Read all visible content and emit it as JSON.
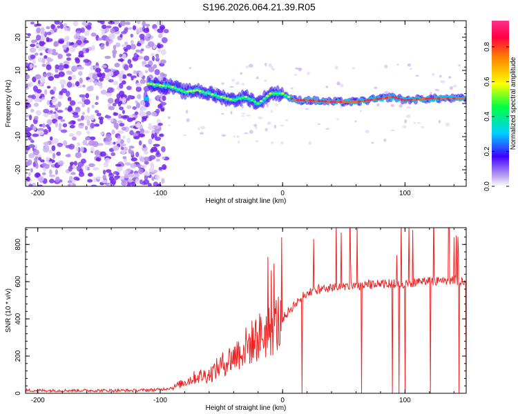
{
  "chart_data": [
    {
      "type": "heatmap",
      "title": "S196.2026.064.21.39.R05",
      "xlabel": "Height of straight line (km)",
      "ylabel": "Frequency (Hz)",
      "xlim": [
        -210,
        150
      ],
      "ylim": [
        -25,
        25
      ],
      "xticks": [
        -200,
        -100,
        0,
        100
      ],
      "yticks": [
        -20,
        -10,
        0,
        10,
        20
      ],
      "colorbar": {
        "label": "Normalized spectral amplitude",
        "range": [
          0,
          1
        ],
        "ticks": [
          0.0,
          0.2,
          0.4,
          0.6,
          0.8
        ],
        "tick_labels": [
          "0.0",
          "0.2",
          "0.4",
          "0.6",
          "0.8"
        ]
      },
      "ridge": {
        "description_points_x": [
          -110,
          -100,
          -90,
          -80,
          -70,
          -60,
          -50,
          -40,
          -30,
          -20,
          -10,
          0,
          10,
          20,
          40,
          60,
          80,
          90,
          100,
          120,
          150
        ],
        "frequency_hz": [
          6,
          5.5,
          5,
          3.5,
          4,
          3,
          2,
          1,
          2,
          0,
          3,
          3,
          1,
          1,
          0.5,
          0.5,
          1.5,
          2,
          1,
          1.5,
          1.5
        ]
      }
    },
    {
      "type": "line",
      "xlabel": "Height of straight line (km)",
      "ylabel": "SNR (10 * v/v)",
      "xlim": [
        -210,
        150
      ],
      "ylim": [
        0,
        890
      ],
      "xticks": [
        -200,
        -100,
        0,
        100
      ],
      "yticks": [
        0,
        200,
        400,
        600,
        800
      ],
      "series": [
        {
          "name": "SNR",
          "color": "#ee2222",
          "x": [
            -210,
            -180,
            -150,
            -120,
            -100,
            -90,
            -80,
            -70,
            -60,
            -50,
            -40,
            -30,
            -20,
            -10,
            0,
            10,
            20,
            30,
            40,
            50,
            60,
            70,
            80,
            90,
            100,
            110,
            120,
            130,
            140,
            150
          ],
          "values": [
            15,
            15,
            15,
            15,
            20,
            30,
            60,
            90,
            100,
            150,
            200,
            250,
            300,
            340,
            400,
            480,
            540,
            560,
            570,
            575,
            580,
            585,
            585,
            590,
            590,
            595,
            600,
            600,
            605,
            605
          ]
        }
      ]
    }
  ],
  "colors": {
    "line": "#ee2222",
    "axis": "#000000",
    "background": "#ffffff"
  }
}
